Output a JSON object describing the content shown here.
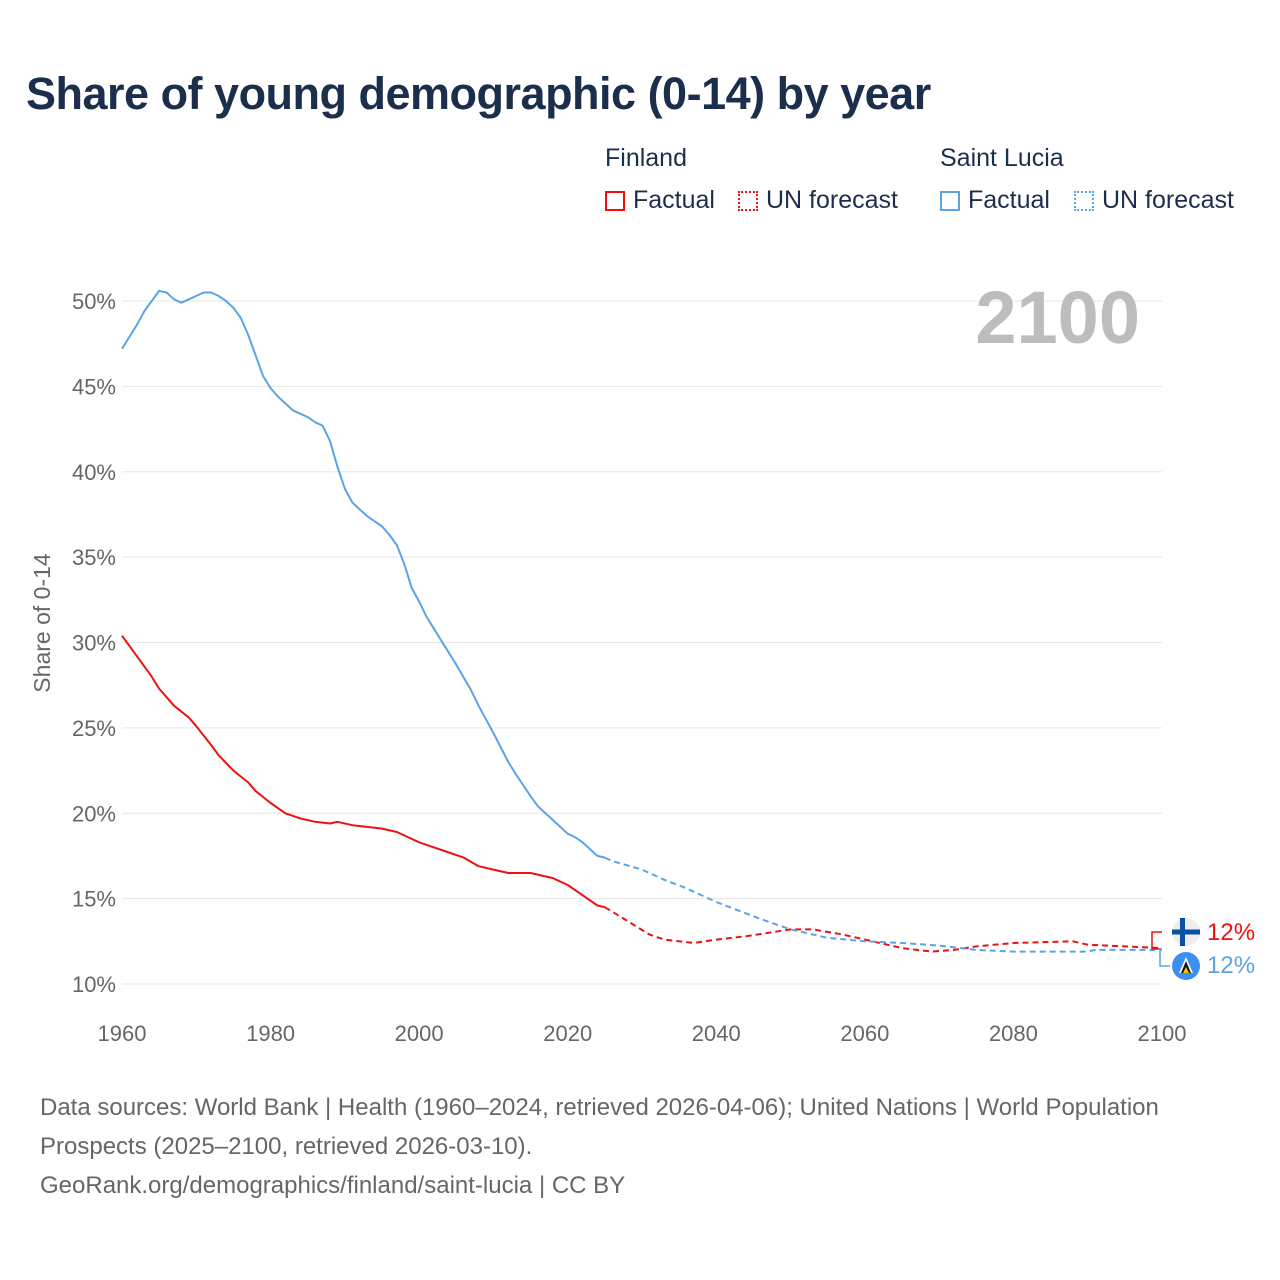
{
  "chart_data": {
    "type": "line",
    "title": "Share of young demographic (0-14) by year",
    "xlabel": "",
    "ylabel": "Share of 0-14",
    "xlim": [
      1960,
      2100
    ],
    "ylim": [
      10,
      50
    ],
    "x_ticks": [
      "1960",
      "1980",
      "2000",
      "2020",
      "2040",
      "2060",
      "2080",
      "2100"
    ],
    "y_ticks": [
      "10%",
      "15%",
      "20%",
      "25%",
      "30%",
      "35%",
      "40%",
      "45%",
      "50%"
    ],
    "y_tick_values": [
      10,
      15,
      20,
      25,
      30,
      35,
      40,
      45,
      50
    ],
    "x_tick_values": [
      1960,
      1980,
      2000,
      2020,
      2040,
      2060,
      2080,
      2100
    ],
    "grid": true,
    "year_label": "2100",
    "legend": {
      "placement": "top-right",
      "groups": [
        {
          "country": "Finland",
          "factual": "Factual",
          "forecast": "UN forecast"
        },
        {
          "country": "Saint Lucia",
          "factual": "Factual",
          "forecast": "UN forecast"
        }
      ]
    },
    "end_labels": {
      "finland": "12%",
      "saint_lucia": "12%"
    },
    "series": [
      {
        "name": "Finland",
        "type": "Factual",
        "color": "#ee1111",
        "dashed": false,
        "x": [
          1960,
          1962,
          1964,
          1965,
          1967,
          1969,
          1970,
          1972,
          1973,
          1975,
          1977,
          1978,
          1980,
          1982,
          1984,
          1986,
          1988,
          1989,
          1991,
          1993,
          1995,
          1997,
          1999,
          2000,
          2002,
          2004,
          2006,
          2008,
          2010,
          2012,
          2015,
          2018,
          2020,
          2022,
          2024,
          2025
        ],
        "y": [
          30.4,
          29.2,
          28.0,
          27.3,
          26.3,
          25.6,
          25.1,
          24.0,
          23.4,
          22.5,
          21.8,
          21.3,
          20.6,
          20.0,
          19.7,
          19.5,
          19.4,
          19.5,
          19.3,
          19.2,
          19.1,
          18.9,
          18.5,
          18.3,
          18.0,
          17.7,
          17.4,
          16.9,
          16.7,
          16.5,
          16.5,
          16.2,
          15.8,
          15.2,
          14.6,
          14.5
        ]
      },
      {
        "name": "Finland",
        "type": "UN forecast",
        "color": "#ee1111",
        "dashed": true,
        "x": [
          2025,
          2028,
          2031,
          2033,
          2037,
          2040,
          2044,
          2050,
          2053,
          2057,
          2060,
          2065,
          2069,
          2072,
          2075,
          2080,
          2088,
          2090,
          2095,
          2100
        ],
        "y": [
          14.5,
          13.7,
          12.9,
          12.6,
          12.4,
          12.6,
          12.8,
          13.2,
          13.2,
          12.9,
          12.6,
          12.1,
          11.9,
          12.0,
          12.2,
          12.4,
          12.5,
          12.3,
          12.2,
          12.1
        ]
      },
      {
        "name": "Saint Lucia",
        "type": "Factual",
        "color": "#5aa3e8",
        "dashed": false,
        "x": [
          1960,
          1962,
          1963,
          1965,
          1966,
          1967,
          1968,
          1969,
          1970,
          1971,
          1972,
          1973,
          1974,
          1975,
          1976,
          1977,
          1978,
          1979,
          1980,
          1981,
          1982,
          1983,
          1984,
          1985,
          1986,
          1987,
          1988,
          1989,
          1990,
          1991,
          1992,
          1993,
          1994,
          1995,
          1996,
          1997,
          1998,
          1999,
          2000,
          2001,
          2002,
          2003,
          2005,
          2007,
          2008,
          2010,
          2012,
          2013,
          2015,
          2016,
          2018,
          2020,
          2021,
          2022,
          2023,
          2024,
          2025
        ],
        "y": [
          47.2,
          48.6,
          49.4,
          50.6,
          50.5,
          50.1,
          49.9,
          50.1,
          50.3,
          50.5,
          50.5,
          50.3,
          50.0,
          49.6,
          49.0,
          48.0,
          46.8,
          45.6,
          44.9,
          44.4,
          44.0,
          43.6,
          43.4,
          43.2,
          42.9,
          42.7,
          41.8,
          40.3,
          39.0,
          38.2,
          37.8,
          37.4,
          37.1,
          36.8,
          36.3,
          35.7,
          34.6,
          33.2,
          32.4,
          31.5,
          30.8,
          30.1,
          28.7,
          27.2,
          26.3,
          24.7,
          23.0,
          22.3,
          21.0,
          20.4,
          19.6,
          18.8,
          18.6,
          18.3,
          17.9,
          17.5,
          17.4
        ]
      },
      {
        "name": "Saint Lucia",
        "type": "UN forecast",
        "color": "#5aa3e8",
        "dashed": true,
        "x": [
          2025,
          2026,
          2030,
          2033,
          2036,
          2040,
          2043,
          2046,
          2050,
          2055,
          2060,
          2065,
          2070,
          2075,
          2080,
          2085,
          2090,
          2091,
          2095,
          2100
        ],
        "y": [
          17.4,
          17.2,
          16.7,
          16.1,
          15.6,
          14.8,
          14.3,
          13.8,
          13.2,
          12.7,
          12.5,
          12.4,
          12.25,
          12.0,
          11.9,
          11.9,
          11.9,
          12.0,
          12.0,
          12.0
        ]
      }
    ]
  },
  "footer": {
    "line1": "Data sources: World Bank | Health (1960–2024, retrieved 2026-04-06); United Nations | World Population Prospects (2025–2100, retrieved 2026-03-10).",
    "line2": "GeoRank.org/demographics/finland/saint-lucia | CC BY"
  }
}
